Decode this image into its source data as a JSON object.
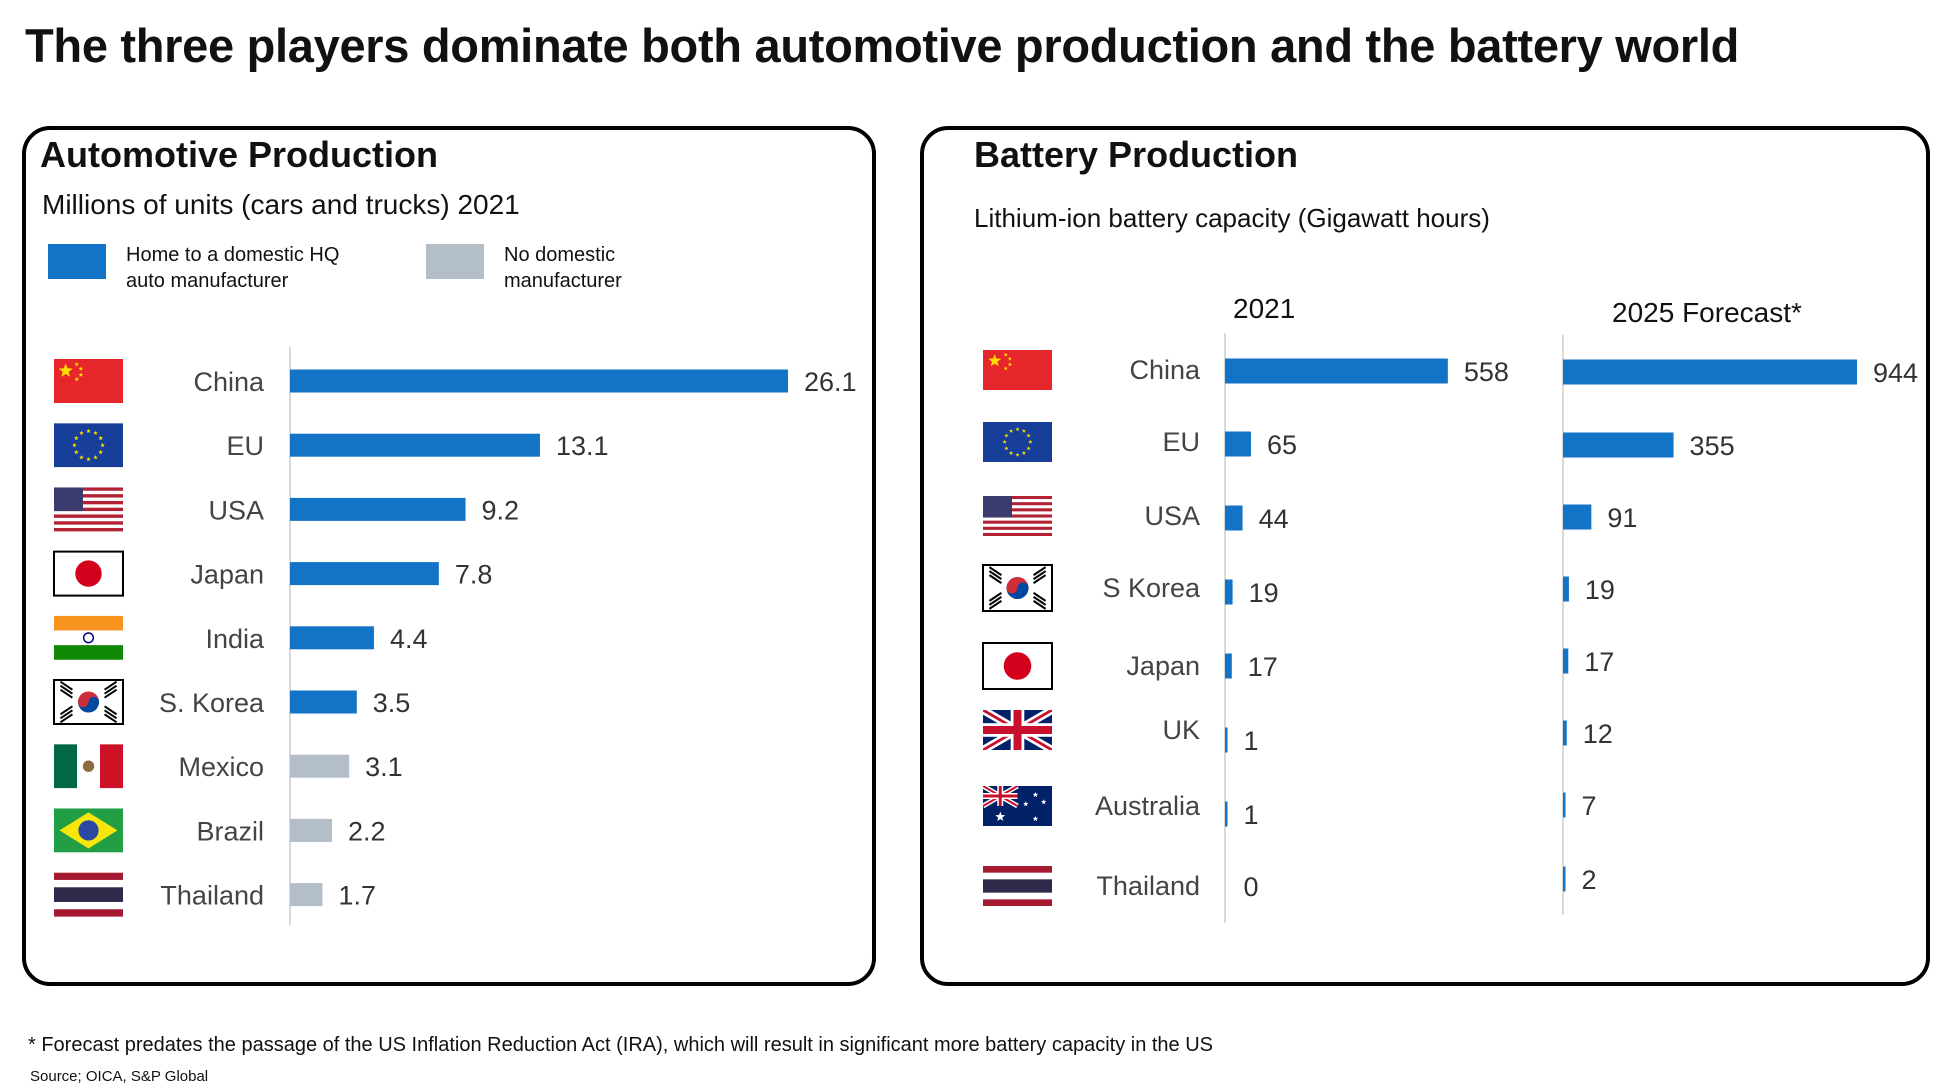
{
  "page": {
    "title": "The three players dominate both automotive production and the battery world",
    "footnote": "* Forecast predates the passage of the US Inflation Reduction Act (IRA), which will result in significant more battery capacity in the US",
    "source": "Source; OICA, S&P Global"
  },
  "colors": {
    "domestic": "#1373C6",
    "non_domestic": "#B3BEC8",
    "axis": "#D9D9D9"
  },
  "auto": {
    "title": "Automotive Production",
    "subtitle": "Millions of units (cars and trucks) 2021",
    "legend": [
      {
        "label": "Home to a domestic HQ auto manufacturer",
        "color": "#1373C6"
      },
      {
        "label": "No domestic manufacturer",
        "color": "#B3BEC8"
      }
    ]
  },
  "battery": {
    "title": "Battery Production",
    "subtitle": "Lithium-ion battery capacity (Gigawatt hours)"
  },
  "chart_data": [
    {
      "type": "bar",
      "orientation": "horizontal",
      "title": "Automotive Production",
      "subtitle": "Millions of units (cars and trucks) 2021",
      "categories": [
        "China",
        "EU",
        "USA",
        "Japan",
        "India",
        "S. Korea",
        "Mexico",
        "Brazil",
        "Thailand"
      ],
      "flags": [
        "china",
        "eu",
        "usa",
        "japan",
        "india",
        "korea",
        "mexico",
        "brazil",
        "thailand"
      ],
      "values": [
        26.1,
        13.1,
        9.2,
        7.8,
        4.4,
        3.5,
        3.1,
        2.2,
        1.7
      ],
      "labels": [
        "26.1",
        "13.1",
        "9.2",
        "7.8",
        "4.4",
        "3.5",
        "3.1",
        "2.2",
        "1.7"
      ],
      "domestic": [
        true,
        true,
        true,
        true,
        true,
        true,
        false,
        false,
        false
      ],
      "xlim": [
        0,
        26.1
      ],
      "grid": false
    },
    {
      "type": "bar",
      "orientation": "horizontal",
      "title": "Battery Production",
      "subtitle": "Lithium-ion battery capacity (Gigawatt hours)",
      "categories": [
        "China",
        "EU",
        "USA",
        "S Korea",
        "Japan",
        "UK",
        "Australia",
        "Thailand"
      ],
      "flags": [
        "china",
        "eu",
        "usa",
        "korea",
        "japan",
        "uk",
        "australia",
        "thailand"
      ],
      "series": [
        {
          "name": "2021",
          "values": [
            558,
            65,
            44,
            19,
            17,
            1,
            1,
            0
          ],
          "labels": [
            "558",
            "65",
            "44",
            "19",
            "17",
            "1",
            "1",
            "0"
          ]
        },
        {
          "name": "2025 Forecast*",
          "values": [
            944,
            355,
            91,
            19,
            17,
            12,
            7,
            2
          ],
          "labels": [
            "944",
            "355",
            "91",
            "19",
            "17",
            "12",
            "7",
            "2"
          ]
        }
      ],
      "xlim": [
        0,
        944
      ],
      "grid": false
    }
  ]
}
